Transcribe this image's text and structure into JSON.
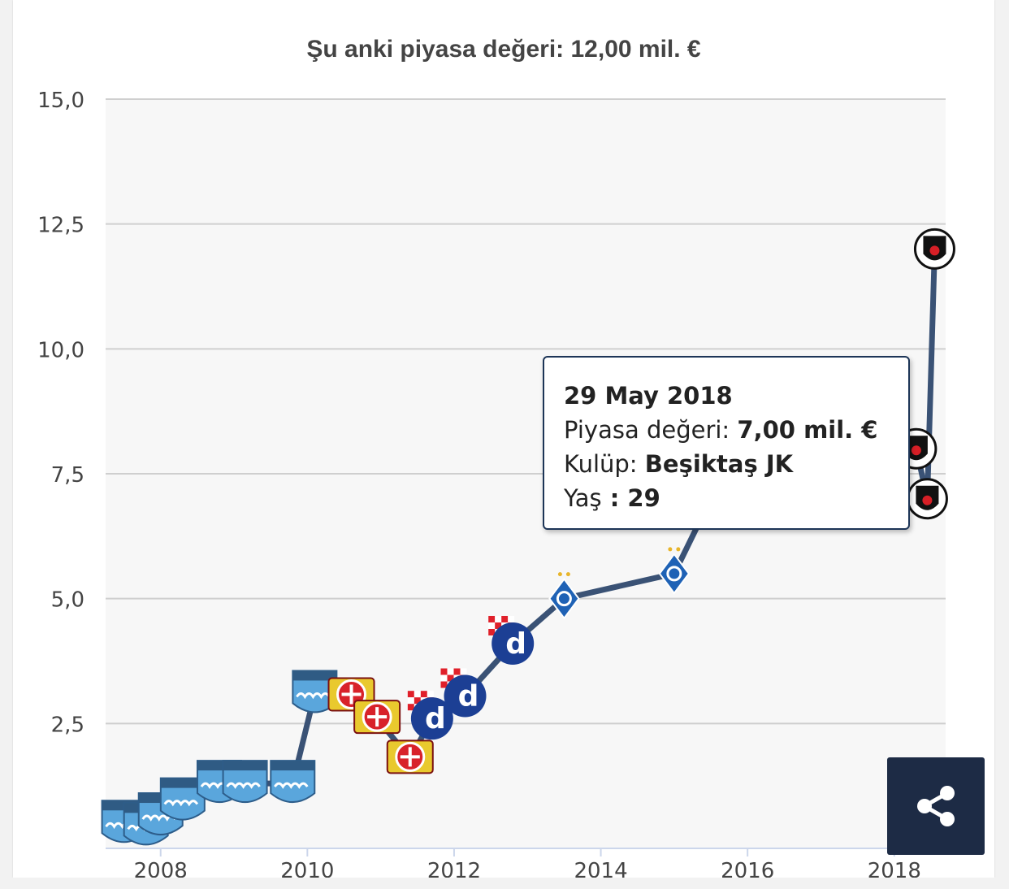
{
  "chart_data": {
    "type": "line",
    "title": "Şu anki piyasa değeri: 12,00 mil. €",
    "ylim": [
      0,
      15
    ],
    "xlim": [
      2007.25,
      2018.7
    ],
    "y_ticks": [
      "2,5",
      "5,0",
      "7,5",
      "10,0",
      "12,5",
      "15,0"
    ],
    "y_tick_values": [
      2.5,
      5.0,
      7.5,
      10.0,
      12.5,
      15.0
    ],
    "x_ticks": [
      "2008",
      "2010",
      "2012",
      "2014",
      "2016",
      "2018"
    ],
    "x_tick_values": [
      2008,
      2010,
      2012,
      2014,
      2016,
      2018
    ],
    "grid": "horizontal",
    "line_color": "#3a5275",
    "points": [
      {
        "x": 2007.5,
        "y": 0.5,
        "club": "Osijek"
      },
      {
        "x": 2007.8,
        "y": 0.45,
        "club": "Osijek"
      },
      {
        "x": 2008.0,
        "y": 0.65,
        "club": "Osijek"
      },
      {
        "x": 2008.3,
        "y": 0.95,
        "club": "Osijek"
      },
      {
        "x": 2008.8,
        "y": 1.3,
        "club": "Osijek"
      },
      {
        "x": 2009.15,
        "y": 1.3,
        "club": "Osijek"
      },
      {
        "x": 2009.8,
        "y": 1.3,
        "club": "Osijek"
      },
      {
        "x": 2010.1,
        "y": 3.1,
        "club": "Osijek"
      },
      {
        "x": 2010.6,
        "y": 3.05,
        "club": "Bayer Leverkusen"
      },
      {
        "x": 2010.95,
        "y": 2.6,
        "club": "Bayer Leverkusen"
      },
      {
        "x": 2011.4,
        "y": 1.8,
        "club": "Bayer Leverkusen"
      },
      {
        "x": 2011.7,
        "y": 2.6,
        "club": "Dinamo Zagreb"
      },
      {
        "x": 2012.15,
        "y": 3.05,
        "club": "Dinamo Zagreb"
      },
      {
        "x": 2012.8,
        "y": 4.1,
        "club": "Dinamo Zagreb"
      },
      {
        "x": 2013.5,
        "y": 5.0,
        "club": "Dynamo Kyiv"
      },
      {
        "x": 2015.0,
        "y": 5.5,
        "club": "Dynamo Kyiv"
      },
      {
        "x": 2015.5,
        "y": 7.0,
        "club": "Dynamo Kyiv"
      },
      {
        "x": 2016.0,
        "y": 7.5,
        "club": "Dynamo Kyiv"
      },
      {
        "x": 2016.45,
        "y": 7.5,
        "club": "Dynamo Kyiv"
      },
      {
        "x": 2016.6,
        "y": 8.5,
        "club": "Dynamo Kyiv"
      },
      {
        "x": 2017.0,
        "y": 9.0,
        "club": "Dynamo Kyiv"
      },
      {
        "x": 2017.45,
        "y": 9.0,
        "club": "Dynamo Kyiv"
      },
      {
        "x": 2018.3,
        "y": 8.0,
        "club": "Beşiktaş JK"
      },
      {
        "x": 2018.45,
        "y": 7.0,
        "club": "Beşiktaş JK"
      },
      {
        "x": 2018.55,
        "y": 12.0,
        "club": "Beşiktaş JK"
      }
    ],
    "highlighted_index": 23
  },
  "tooltip": {
    "date": "29 May 2018",
    "value_label": "Piyasa değeri: ",
    "value": "7,00 mil. €",
    "club_label": "Kulüp: ",
    "club": "Beşiktaş JK",
    "age_label": "Yaş",
    "age_sep": " : ",
    "age": "29"
  },
  "share_button": {
    "icon": "share-icon"
  },
  "colors": {
    "osijek": "#5aa6dc",
    "leverkusen": "#d8222a",
    "zagreb": "#1c3f94",
    "kyiv": "#1f62b5",
    "besiktas": "#111111"
  }
}
